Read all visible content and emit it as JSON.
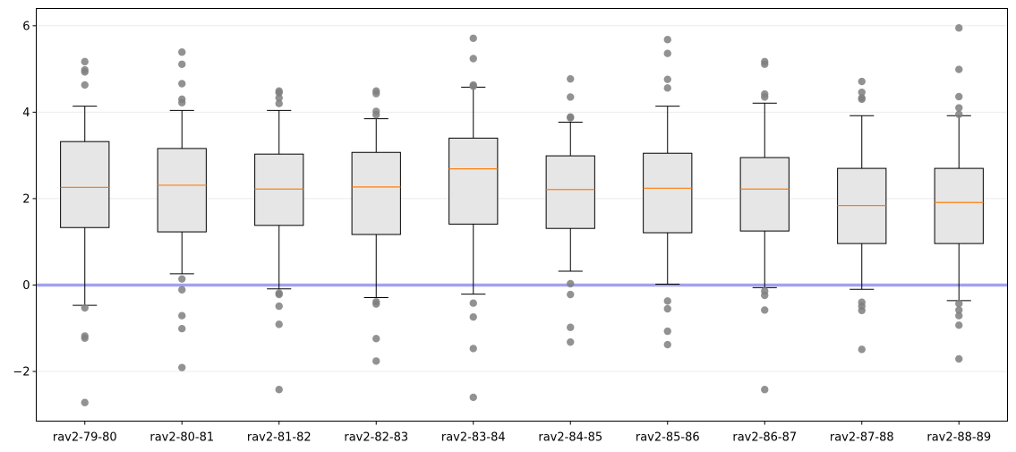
{
  "chart_data": {
    "type": "boxplot",
    "title": "",
    "xlabel": "",
    "ylabel": "",
    "ylim": [
      -3.15,
      6.4
    ],
    "yticks": [
      -2,
      0,
      2,
      4,
      6
    ],
    "ytick_labels": [
      "−2",
      "0",
      "2",
      "4",
      "6"
    ],
    "grid": "horizontal",
    "reference_line": 0,
    "colors": {
      "box_fill": "#e6e6e6",
      "box_edge": "#000000",
      "median": "#ff7f0e",
      "outlier": "#7f7f7f",
      "reference_line": "#9999ee",
      "grid": "#ebebeb"
    },
    "categories": [
      "rav2-79-80",
      "rav2-80-81",
      "rav2-81-82",
      "rav2-82-83",
      "rav2-83-84",
      "rav2-84-85",
      "rav2-85-86",
      "rav2-86-87",
      "rav2-87-88",
      "rav2-88-89"
    ],
    "boxes": [
      {
        "whislo": -0.47,
        "q1": 1.33,
        "med": 2.26,
        "q3": 3.32,
        "whishi": 4.14,
        "fliers": [
          5.17,
          4.98,
          4.93,
          4.63,
          -0.53,
          -1.18,
          -1.23,
          -2.72
        ]
      },
      {
        "whislo": 0.26,
        "q1": 1.23,
        "med": 2.31,
        "q3": 3.16,
        "whishi": 4.04,
        "fliers": [
          5.39,
          5.11,
          4.66,
          4.3,
          4.22,
          0.14,
          -0.11,
          -0.71,
          -1.01,
          -1.91
        ]
      },
      {
        "whislo": -0.09,
        "q1": 1.38,
        "med": 2.22,
        "q3": 3.03,
        "whishi": 4.04,
        "fliers": [
          4.49,
          4.45,
          4.33,
          4.2,
          -0.19,
          -0.22,
          -0.49,
          -0.91,
          -2.42
        ]
      },
      {
        "whislo": -0.29,
        "q1": 1.17,
        "med": 2.27,
        "q3": 3.07,
        "whishi": 3.85,
        "fliers": [
          4.49,
          4.43,
          4.02,
          3.94,
          -0.39,
          -0.44,
          -1.24,
          -1.76
        ]
      },
      {
        "whislo": -0.21,
        "q1": 1.41,
        "med": 2.69,
        "q3": 3.4,
        "whishi": 4.58,
        "fliers": [
          5.71,
          5.24,
          4.63,
          4.6,
          -0.42,
          -0.74,
          -1.47,
          -2.6
        ]
      },
      {
        "whislo": 0.32,
        "q1": 1.31,
        "med": 2.21,
        "q3": 2.99,
        "whishi": 3.77,
        "fliers": [
          4.77,
          4.35,
          3.89,
          3.87,
          0.03,
          -0.22,
          -0.98,
          -1.32
        ]
      },
      {
        "whislo": 0.02,
        "q1": 1.21,
        "med": 2.24,
        "q3": 3.05,
        "whishi": 4.14,
        "fliers": [
          5.68,
          5.36,
          4.76,
          4.56,
          -0.37,
          -0.55,
          -1.07,
          -1.38
        ]
      },
      {
        "whislo": -0.06,
        "q1": 1.25,
        "med": 2.22,
        "q3": 2.95,
        "whishi": 4.21,
        "fliers": [
          5.17,
          5.11,
          4.42,
          4.35,
          -0.14,
          -0.24,
          -0.58,
          -2.42
        ]
      },
      {
        "whislo": -0.1,
        "q1": 0.96,
        "med": 1.84,
        "q3": 2.7,
        "whishi": 3.92,
        "fliers": [
          4.71,
          4.46,
          4.33,
          4.3,
          -0.4,
          -0.49,
          -0.59,
          -1.49
        ]
      },
      {
        "whislo": -0.36,
        "q1": 0.96,
        "med": 1.91,
        "q3": 2.7,
        "whishi": 3.92,
        "fliers": [
          5.95,
          4.99,
          4.36,
          4.1,
          3.95,
          -0.43,
          -0.58,
          -0.71,
          -0.93,
          -1.71
        ]
      }
    ]
  }
}
